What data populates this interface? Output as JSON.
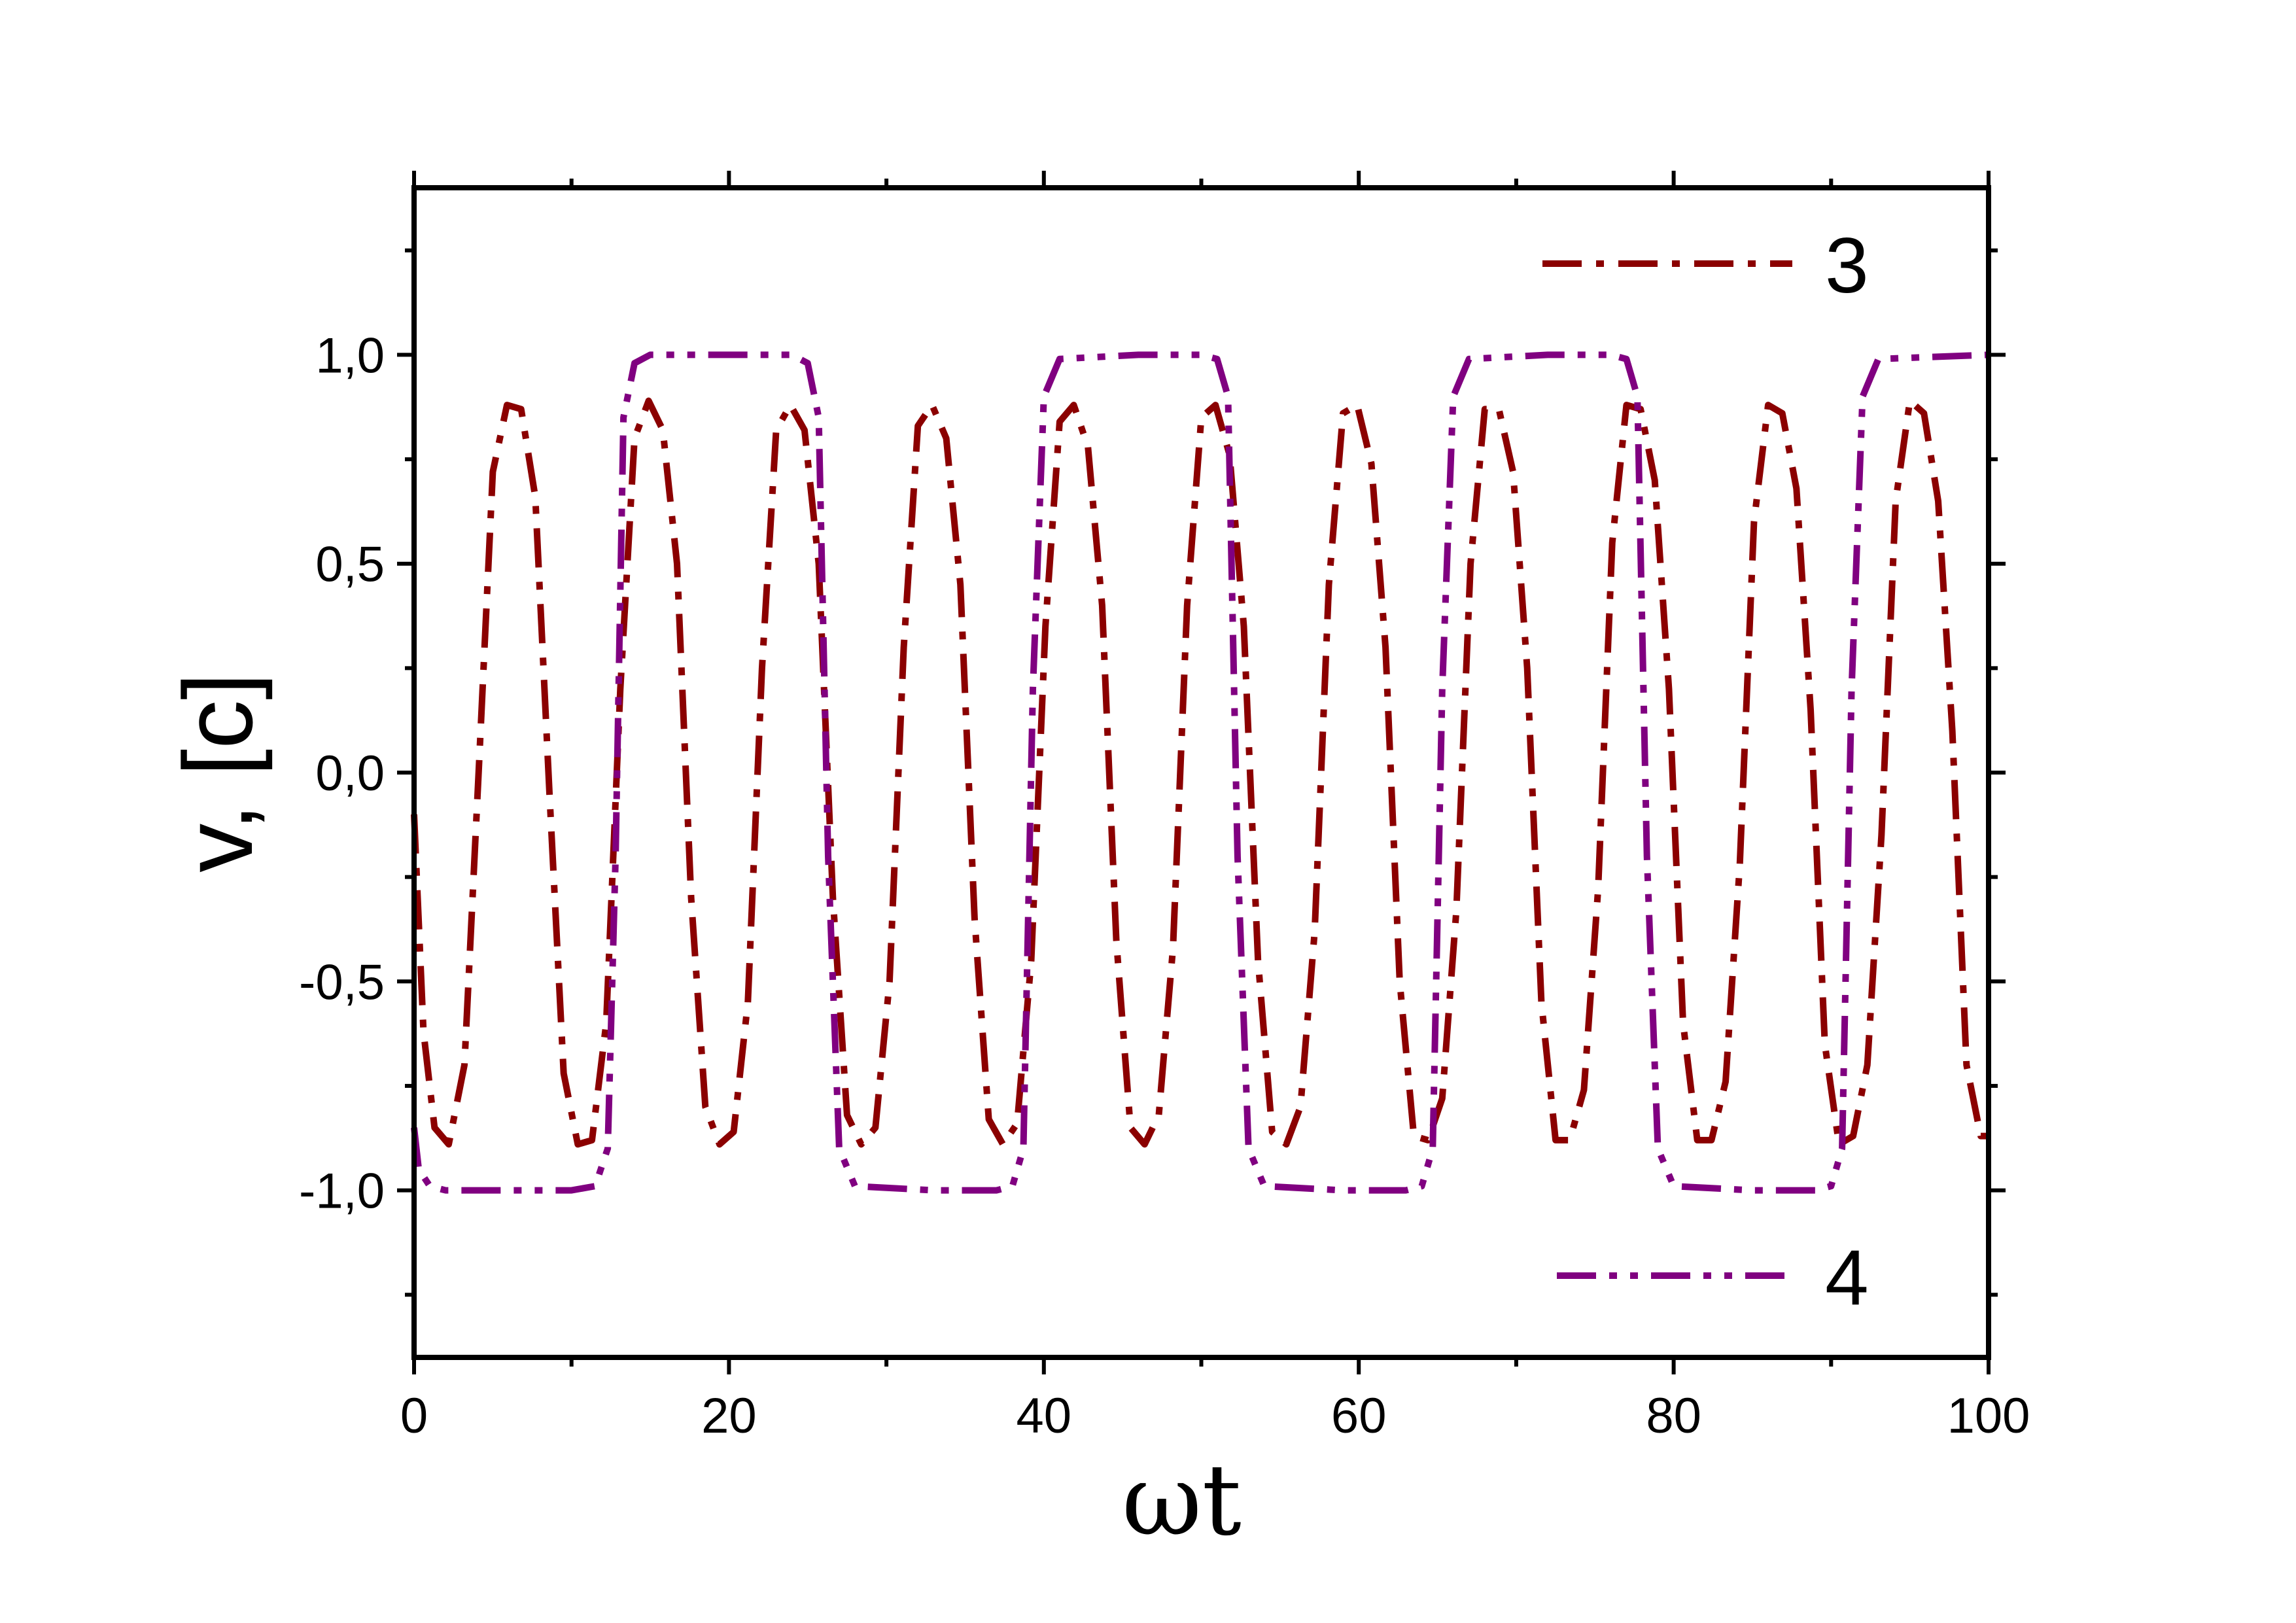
{
  "chart_data": {
    "type": "line",
    "xlabel": "ωt",
    "ylabel": "v, [c]",
    "xlim": [
      0,
      100
    ],
    "ylim": [
      -1.4,
      1.4
    ],
    "x_ticks": [
      0,
      20,
      40,
      60,
      80,
      100
    ],
    "x_tick_labels": [
      "0",
      "20",
      "40",
      "60",
      "80",
      "100"
    ],
    "y_ticks": [
      -1.0,
      -0.5,
      0.0,
      0.5,
      1.0
    ],
    "y_tick_labels": [
      "-1,0",
      "-0,5",
      "0,0",
      "0,5",
      "1,0"
    ],
    "grid": false,
    "legend_placement": "right",
    "series": [
      {
        "name": "3",
        "color": "#8b0000",
        "dash": "dash-dot",
        "x": [
          0.0,
          0.6,
          1.3,
          2.2,
          3.2,
          4.1,
          5.0,
          5.9,
          6.8,
          7.7,
          8.6,
          9.5,
          10.4,
          11.3,
          12.2,
          13.1,
          14.0,
          14.9,
          15.8,
          16.7,
          17.6,
          18.5,
          19.4,
          20.3,
          21.2,
          22.1,
          23.0,
          23.9,
          24.8,
          25.7,
          26.6,
          27.5,
          28.4,
          29.3,
          30.2,
          31.1,
          32.0,
          32.9,
          33.8,
          34.7,
          35.6,
          36.5,
          37.4,
          38.3,
          39.2,
          40.1,
          41.0,
          41.9,
          42.8,
          43.7,
          44.6,
          45.5,
          46.4,
          47.3,
          48.2,
          49.1,
          50.0,
          50.9,
          51.8,
          52.7,
          53.6,
          54.5,
          55.4,
          56.3,
          57.2,
          58.1,
          59.0,
          59.9,
          60.8,
          61.7,
          62.6,
          63.5,
          64.4,
          65.3,
          66.2,
          67.1,
          68.0,
          68.9,
          69.8,
          70.7,
          71.6,
          72.5,
          73.4,
          74.3,
          75.2,
          76.1,
          77.0,
          77.9,
          78.8,
          79.7,
          80.6,
          81.5,
          82.4,
          83.3,
          84.2,
          85.1,
          86.0,
          86.9,
          87.8,
          88.7,
          89.6,
          90.5,
          91.4,
          92.3,
          93.2,
          94.1,
          95.0,
          95.9,
          96.8,
          97.7,
          98.6,
          99.5,
          100.0
        ],
        "y": [
          -0.1,
          -0.62,
          -0.85,
          -0.89,
          -0.7,
          0.0,
          0.72,
          0.88,
          0.87,
          0.66,
          -0.05,
          -0.72,
          -0.89,
          -0.88,
          -0.6,
          0.2,
          0.8,
          0.89,
          0.82,
          0.5,
          -0.3,
          -0.8,
          -0.89,
          -0.86,
          -0.55,
          0.25,
          0.82,
          0.88,
          0.82,
          0.5,
          -0.3,
          -0.82,
          -0.89,
          -0.85,
          -0.5,
          0.3,
          0.83,
          0.88,
          0.8,
          0.45,
          -0.35,
          -0.83,
          -0.89,
          -0.84,
          -0.45,
          0.35,
          0.84,
          0.88,
          0.78,
          0.4,
          -0.4,
          -0.85,
          -0.89,
          -0.82,
          -0.42,
          0.4,
          0.85,
          0.88,
          0.76,
          0.35,
          -0.45,
          -0.86,
          -0.89,
          -0.8,
          -0.38,
          0.45,
          0.86,
          0.88,
          0.74,
          0.3,
          -0.5,
          -0.87,
          -0.88,
          -0.78,
          -0.33,
          0.5,
          0.87,
          0.87,
          0.72,
          0.25,
          -0.55,
          -0.88,
          -0.88,
          -0.76,
          -0.28,
          0.55,
          0.88,
          0.87,
          0.7,
          0.2,
          -0.6,
          -0.88,
          -0.88,
          -0.74,
          -0.22,
          0.6,
          0.88,
          0.86,
          0.68,
          0.15,
          -0.65,
          -0.89,
          -0.87,
          -0.7,
          -0.15,
          0.65,
          0.89,
          0.86,
          0.65,
          0.1,
          -0.7,
          -0.87,
          -0.87
        ]
      },
      {
        "name": "4",
        "color": "#800080",
        "dash": "dash-dot-dot",
        "x": [
          0.0,
          0.3,
          1.0,
          2.0,
          5.0,
          10.0,
          11.5,
          12.3,
          12.8,
          13.3,
          14.0,
          15.0,
          20.0,
          24.0,
          25.0,
          25.7,
          26.3,
          27.0,
          28.0,
          33.0,
          37.0,
          38.0,
          38.7,
          39.3,
          40.0,
          41.0,
          46.0,
          50.0,
          51.0,
          51.7,
          52.3,
          53.0,
          54.0,
          59.0,
          63.0,
          64.0,
          64.7,
          65.3,
          66.0,
          67.0,
          72.0,
          76.0,
          77.0,
          77.7,
          78.3,
          79.0,
          80.0,
          85.0,
          89.0,
          90.0,
          90.7,
          91.3,
          92.0,
          93.0,
          100.0
        ],
        "y": [
          -0.85,
          -0.95,
          -0.99,
          -1.0,
          -1.0,
          -1.0,
          -0.99,
          -0.9,
          -0.2,
          0.85,
          0.98,
          1.0,
          1.0,
          1.0,
          0.98,
          0.85,
          -0.2,
          -0.9,
          -0.99,
          -1.0,
          -1.0,
          -0.99,
          -0.9,
          0.2,
          0.9,
          0.99,
          1.0,
          1.0,
          0.99,
          0.9,
          -0.2,
          -0.9,
          -0.99,
          -1.0,
          -1.0,
          -0.99,
          -0.9,
          0.2,
          0.9,
          0.99,
          1.0,
          1.0,
          0.99,
          0.9,
          -0.2,
          -0.9,
          -0.99,
          -1.0,
          -1.0,
          -0.99,
          -0.9,
          0.2,
          0.9,
          0.99,
          1.0
        ]
      }
    ]
  }
}
